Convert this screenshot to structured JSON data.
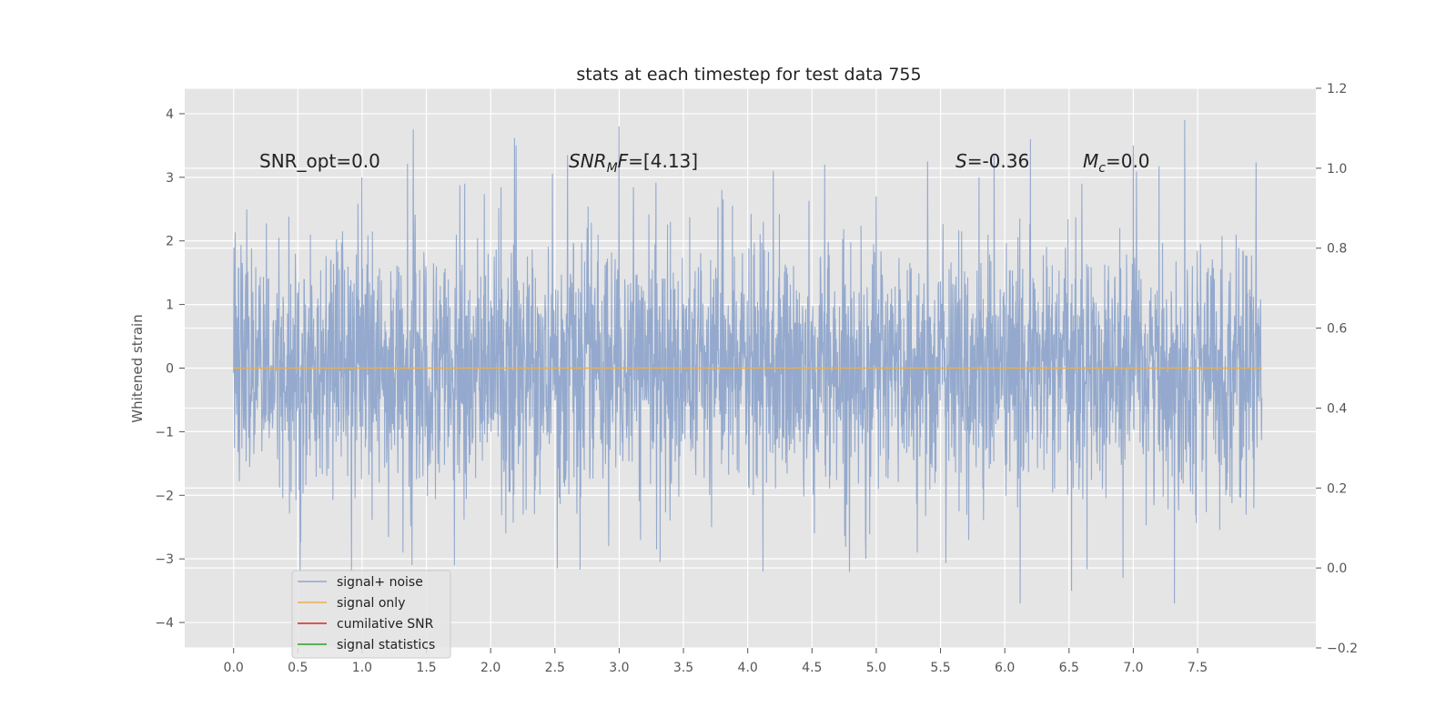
{
  "chart_data": {
    "type": "line",
    "title": "stats at each timestep for test data 755",
    "ylabel": "Whitened strain",
    "xlabel": "",
    "xlim": [
      -0.38,
      8.42
    ],
    "ylim": [
      -4.4,
      4.4
    ],
    "y2lim": [
      -0.2,
      1.2
    ],
    "grid": true,
    "legend_position": "lower-left",
    "x_ticks": [
      "0.0",
      "0.5",
      "1.0",
      "1.5",
      "2.0",
      "2.5",
      "3.0",
      "3.5",
      "4.0",
      "4.5",
      "5.0",
      "5.5",
      "6.0",
      "6.5",
      "7.0",
      "7.5"
    ],
    "x_tick_values": [
      0.0,
      0.5,
      1.0,
      1.5,
      2.0,
      2.5,
      3.0,
      3.5,
      4.0,
      4.5,
      5.0,
      5.5,
      6.0,
      6.5,
      7.0,
      7.5
    ],
    "y_ticks": [
      "−4",
      "−3",
      "−2",
      "−1",
      "0",
      "1",
      "2",
      "3",
      "4"
    ],
    "y_tick_values": [
      -4,
      -3,
      -2,
      -1,
      0,
      1,
      2,
      3,
      4
    ],
    "y2_ticks": [
      "−0.2",
      "0.0",
      "0.2",
      "0.4",
      "0.6",
      "0.8",
      "1.0",
      "1.2"
    ],
    "y2_tick_values": [
      -0.2,
      0.0,
      0.2,
      0.4,
      0.6,
      0.8,
      1.0,
      1.2
    ],
    "annotations": {
      "snr_opt": "SNR_opt=0.0",
      "snr_mf_main": "SNR",
      "snr_mf_sub": "M",
      "snr_mf_rest": "F",
      "snr_mf_value": "=[4.13]",
      "s_symbol": "S",
      "s_value": "=-0.36",
      "mc_symbol": "M",
      "mc_sub": "c",
      "mc_value": "=0.0"
    },
    "series": [
      {
        "name": "signal+ noise",
        "color": "#8fa5cb",
        "description_of_values": "noise-like whitened strain, approx range -3.7 to 3.9",
        "x_range": [
          0.0,
          8.0
        ],
        "sample_peaks_y": [
          1.3,
          2.1,
          3.0,
          3.75,
          2.9,
          3.5,
          3.35,
          3.8,
          2.3,
          2.8,
          3.1,
          3.2,
          2.7,
          3.25,
          3.0,
          3.6,
          2.9,
          3.5,
          3.9,
          2.1
        ],
        "sample_troughs_y": [
          -1.1,
          -3.2,
          -3.2,
          -2.9,
          -3.1,
          -2.6,
          -3.15,
          -2.8,
          -3.05,
          -2.5,
          -3.2,
          -2.6,
          -3.0,
          -2.9,
          -2.7,
          -3.7,
          -3.5,
          -3.3,
          -3.7,
          -2.0
        ]
      },
      {
        "name": "signal only",
        "color": "#e8b04f",
        "constant_value": 0.0,
        "x_range": [
          0.0,
          8.0
        ]
      },
      {
        "name": "cumilative SNR",
        "color": "#d62728"
      },
      {
        "name": "signal statistics",
        "color": "#2ca02c"
      }
    ]
  }
}
